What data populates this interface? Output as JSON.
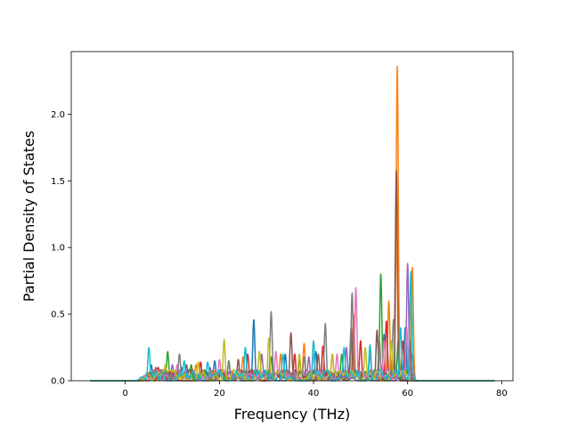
{
  "chart_data": {
    "type": "line",
    "title": "",
    "xlabel": "Frequency (THz)",
    "ylabel": "Partial Density of States",
    "xlim": [
      -11.5,
      82.4
    ],
    "ylim": [
      0,
      2.47
    ],
    "xticks": [
      0,
      20,
      40,
      60,
      80
    ],
    "yticks": [
      0.0,
      0.5,
      1.0,
      1.5,
      2.0
    ],
    "xtick_labels": [
      "0",
      "20",
      "40",
      "60",
      "80"
    ],
    "ytick_labels": [
      "0.0",
      "0.5",
      "1.0",
      "1.5",
      "2.0"
    ],
    "grid": false,
    "legend": "none",
    "x_domain": [
      -7.5,
      78.5
    ],
    "peaks_region": [
      2,
      61
    ],
    "series": [
      {
        "color": "#1f77b4",
        "peaks": [
          [
            5.5,
            0.12
          ],
          [
            12,
            0.1
          ],
          [
            19,
            0.15
          ],
          [
            27.3,
            0.46
          ],
          [
            34,
            0.2
          ],
          [
            40.5,
            0.22
          ],
          [
            48,
            0.3
          ],
          [
            55,
            0.35
          ],
          [
            59.5,
            0.4
          ]
        ]
      },
      {
        "color": "#ff7f0e",
        "peaks": [
          [
            8,
            0.08
          ],
          [
            15,
            0.12
          ],
          [
            25,
            0.18
          ],
          [
            33,
            0.2
          ],
          [
            38,
            0.28
          ],
          [
            44,
            0.2
          ],
          [
            48.5,
            0.5
          ],
          [
            56,
            0.6
          ],
          [
            57.8,
            2.36
          ],
          [
            61,
            0.85
          ]
        ]
      },
      {
        "color": "#2ca02c",
        "peaks": [
          [
            9,
            0.22
          ],
          [
            14,
            0.12
          ],
          [
            22,
            0.15
          ],
          [
            31,
            0.18
          ],
          [
            37,
            0.15
          ],
          [
            46,
            0.2
          ],
          [
            54.3,
            0.8
          ],
          [
            58,
            0.3
          ]
        ]
      },
      {
        "color": "#d62728",
        "peaks": [
          [
            7,
            0.1
          ],
          [
            16,
            0.14
          ],
          [
            26,
            0.2
          ],
          [
            36,
            0.2
          ],
          [
            42,
            0.26
          ],
          [
            50,
            0.3
          ],
          [
            55.5,
            0.45
          ],
          [
            59,
            0.3
          ]
        ]
      },
      {
        "color": "#9467bd",
        "peaks": [
          [
            10,
            0.12
          ],
          [
            18,
            0.1
          ],
          [
            29,
            0.2
          ],
          [
            39,
            0.18
          ],
          [
            47,
            0.25
          ],
          [
            52,
            0.2
          ],
          [
            60,
            0.88
          ]
        ]
      },
      {
        "color": "#8c564b",
        "peaks": [
          [
            6.5,
            0.1
          ],
          [
            13,
            0.12
          ],
          [
            24,
            0.16
          ],
          [
            35.2,
            0.36
          ],
          [
            41,
            0.2
          ],
          [
            48,
            0.4
          ],
          [
            53.5,
            0.38
          ],
          [
            57.6,
            1.58
          ],
          [
            60.5,
            0.3
          ]
        ]
      },
      {
        "color": "#e377c2",
        "peaks": [
          [
            11,
            0.12
          ],
          [
            20,
            0.16
          ],
          [
            32,
            0.22
          ],
          [
            40,
            0.2
          ],
          [
            45,
            0.2
          ],
          [
            49,
            0.7
          ],
          [
            55,
            0.3
          ],
          [
            59.8,
            0.4
          ]
        ]
      },
      {
        "color": "#7f7f7f",
        "peaks": [
          [
            11.5,
            0.2
          ],
          [
            22,
            0.14
          ],
          [
            31,
            0.52
          ],
          [
            38,
            0.18
          ],
          [
            42.5,
            0.43
          ],
          [
            48.2,
            0.66
          ],
          [
            54,
            0.3
          ],
          [
            57,
            0.46
          ],
          [
            61,
            0.2
          ]
        ]
      },
      {
        "color": "#bcbd22",
        "peaks": [
          [
            8.5,
            0.12
          ],
          [
            15.5,
            0.14
          ],
          [
            21,
            0.31
          ],
          [
            28.5,
            0.22
          ],
          [
            30.5,
            0.32
          ],
          [
            37,
            0.2
          ],
          [
            44,
            0.2
          ],
          [
            51,
            0.25
          ],
          [
            56.5,
            0.3
          ]
        ]
      },
      {
        "color": "#17becf",
        "peaks": [
          [
            5,
            0.25
          ],
          [
            12.5,
            0.15
          ],
          [
            17.5,
            0.14
          ],
          [
            25.5,
            0.25
          ],
          [
            33.5,
            0.2
          ],
          [
            40,
            0.3
          ],
          [
            46.5,
            0.25
          ],
          [
            52,
            0.27
          ],
          [
            58.5,
            0.4
          ],
          [
            60.7,
            0.82
          ]
        ]
      }
    ]
  }
}
